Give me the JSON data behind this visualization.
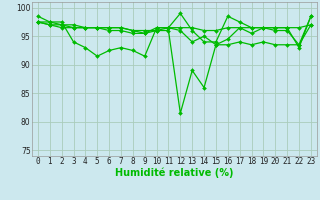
{
  "title": "",
  "xlabel": "Humidité relative (%)",
  "ylabel": "",
  "background_color": "#cce8ee",
  "grid_color": "#aaccbb",
  "line_color": "#00bb00",
  "marker_color": "#00bb00",
  "xlim": [
    -0.5,
    23.5
  ],
  "ylim": [
    74,
    101
  ],
  "yticks": [
    75,
    80,
    85,
    90,
    95,
    100
  ],
  "xticks": [
    0,
    1,
    2,
    3,
    4,
    5,
    6,
    7,
    8,
    9,
    10,
    11,
    12,
    13,
    14,
    15,
    16,
    17,
    18,
    19,
    20,
    21,
    22,
    23
  ],
  "series": [
    [
      98.5,
      97.5,
      97.5,
      94.0,
      93.0,
      91.5,
      92.5,
      93.0,
      92.5,
      91.5,
      96.5,
      96.5,
      96.0,
      94.0,
      95.0,
      93.5,
      94.5,
      96.5,
      95.5,
      96.5,
      96.5,
      96.5,
      93.0,
      98.5
    ],
    [
      97.5,
      97.0,
      96.5,
      96.5,
      96.5,
      96.5,
      96.5,
      96.5,
      96.0,
      95.5,
      96.5,
      96.5,
      96.5,
      96.5,
      96.0,
      96.0,
      96.5,
      96.5,
      96.5,
      96.5,
      96.5,
      96.5,
      96.5,
      97.0
    ],
    [
      97.5,
      97.5,
      97.0,
      96.5,
      96.5,
      96.5,
      96.0,
      96.0,
      95.5,
      95.5,
      96.0,
      96.5,
      99.0,
      96.0,
      94.0,
      94.0,
      98.5,
      97.5,
      96.5,
      96.5,
      96.0,
      96.0,
      93.5,
      98.5
    ],
    [
      97.5,
      97.0,
      97.0,
      97.0,
      96.5,
      96.5,
      96.5,
      96.5,
      96.0,
      96.0,
      96.0,
      96.0,
      81.5,
      89.0,
      86.0,
      93.5,
      93.5,
      94.0,
      93.5,
      94.0,
      93.5,
      93.5,
      93.5,
      97.0
    ]
  ],
  "xlabel_fontsize": 7,
  "tick_fontsize": 5.5,
  "linewidth": 0.9,
  "markersize": 2.0
}
